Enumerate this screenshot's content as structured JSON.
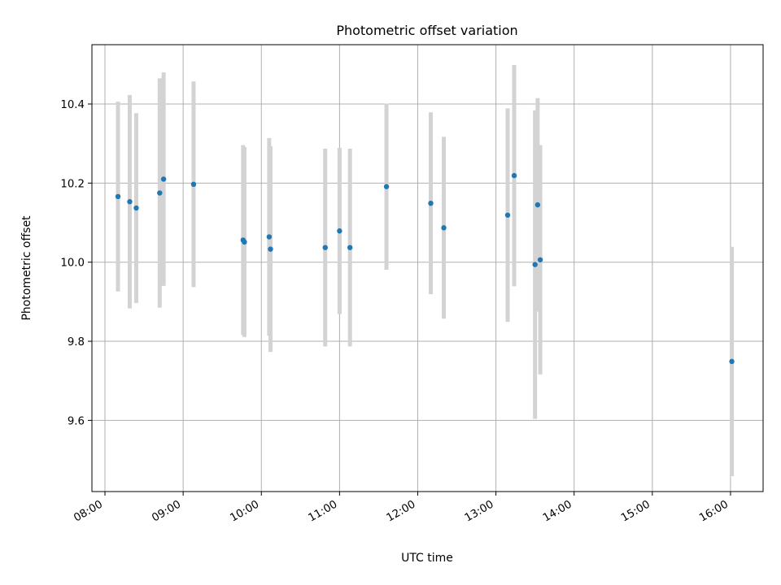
{
  "chart_data": {
    "type": "scatter",
    "title": "Photometric offset variation",
    "xlabel": "UTC time",
    "ylabel": "Photometric offset",
    "x_is_time": true,
    "xlim": [
      "07:50",
      "16:25"
    ],
    "ylim": [
      9.42,
      10.55
    ],
    "x_ticks": [
      "08:00",
      "09:00",
      "10:00",
      "11:00",
      "12:00",
      "13:00",
      "14:00",
      "15:00",
      "16:00"
    ],
    "y_ticks": [
      "9.6",
      "9.8",
      "10.0",
      "10.2",
      "10.4"
    ],
    "grid": true,
    "errorbar_color": "#d3d3d3",
    "point_color": "#1f77b4",
    "points": [
      {
        "t": "08:10",
        "y": 10.166,
        "err": 0.24
      },
      {
        "t": "08:19",
        "y": 10.153,
        "err": 0.27
      },
      {
        "t": "08:24",
        "y": 10.137,
        "err": 0.24
      },
      {
        "t": "08:42",
        "y": 10.175,
        "err": 0.29
      },
      {
        "t": "08:45",
        "y": 10.21,
        "err": 0.27
      },
      {
        "t": "09:08",
        "y": 10.197,
        "err": 0.26
      },
      {
        "t": "09:46",
        "y": 10.056,
        "err": 0.24
      },
      {
        "t": "09:47",
        "y": 10.051,
        "err": 0.24
      },
      {
        "t": "10:06",
        "y": 10.064,
        "err": 0.25
      },
      {
        "t": "10:07",
        "y": 10.033,
        "err": 0.26
      },
      {
        "t": "10:49",
        "y": 10.037,
        "err": 0.25
      },
      {
        "t": "11:00",
        "y": 10.079,
        "err": 0.21
      },
      {
        "t": "11:08",
        "y": 10.037,
        "err": 0.25
      },
      {
        "t": "11:36",
        "y": 10.191,
        "err": 0.21
      },
      {
        "t": "12:10",
        "y": 10.149,
        "err": 0.23
      },
      {
        "t": "12:20",
        "y": 10.087,
        "err": 0.23
      },
      {
        "t": "13:09",
        "y": 10.119,
        "err": 0.27
      },
      {
        "t": "13:14",
        "y": 10.219,
        "err": 0.28
      },
      {
        "t": "13:30",
        "y": 9.994,
        "err": 0.39
      },
      {
        "t": "13:32",
        "y": 10.145,
        "err": 0.27
      },
      {
        "t": "13:34",
        "y": 10.006,
        "err": 0.29
      },
      {
        "t": "16:01",
        "y": 9.749,
        "err": 0.29
      }
    ]
  }
}
